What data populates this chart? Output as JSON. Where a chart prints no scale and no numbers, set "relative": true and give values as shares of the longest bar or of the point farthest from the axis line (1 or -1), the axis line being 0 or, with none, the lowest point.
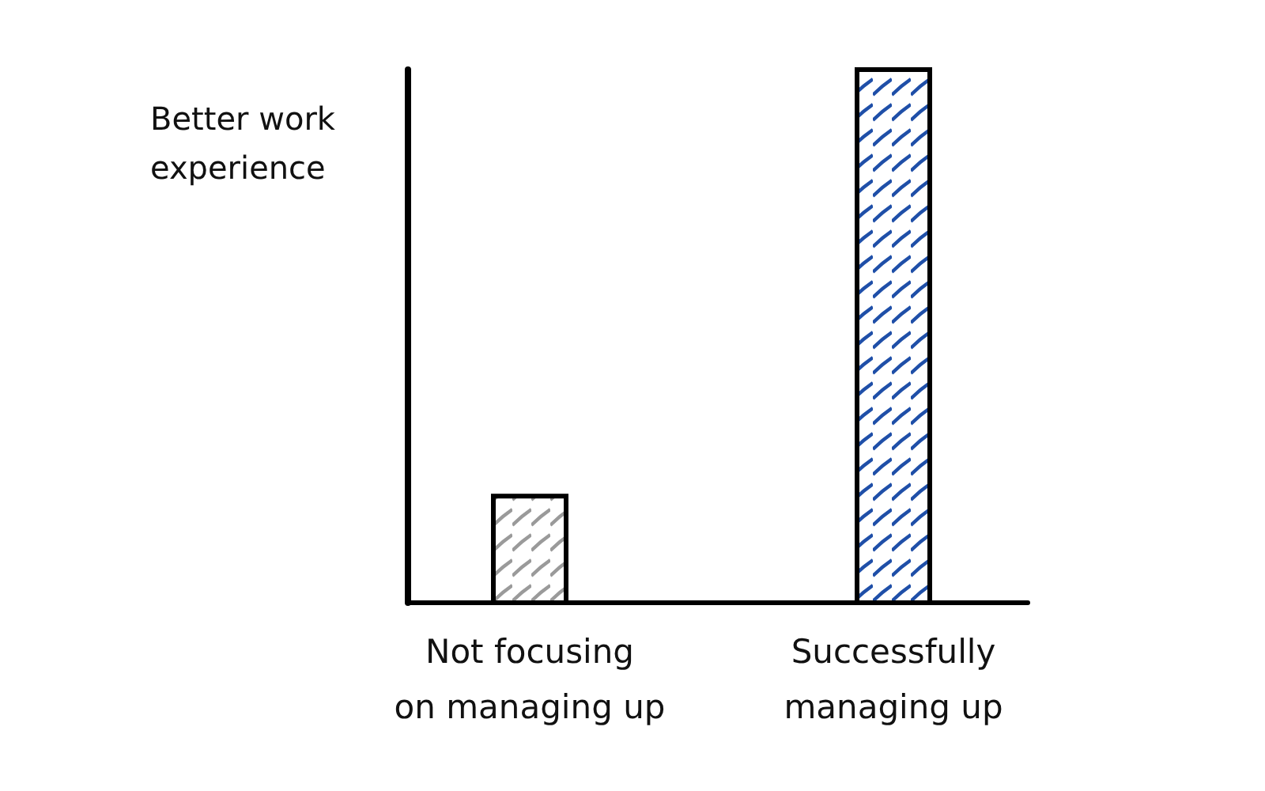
{
  "chart_data": {
    "type": "bar",
    "relative": true,
    "ylabel": "Better work experience",
    "categories": [
      "Not focusing on managing up",
      "Successfully managing up"
    ],
    "values": [
      0.2,
      1
    ],
    "colors": [
      "#9a9a9a",
      "#1f4fa8"
    ]
  }
}
